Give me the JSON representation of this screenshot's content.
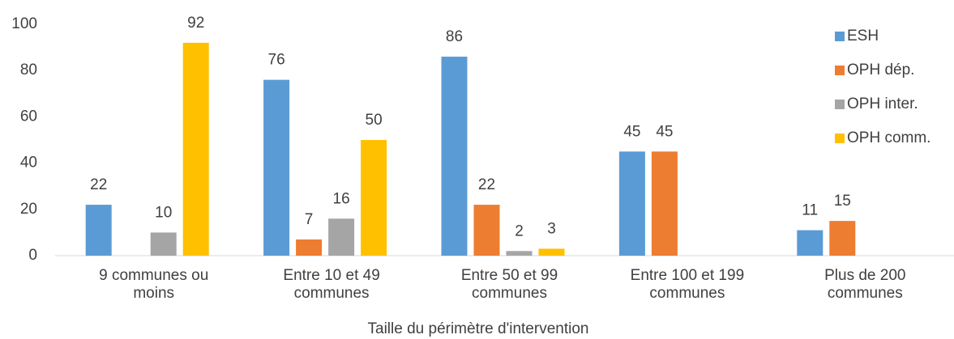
{
  "chart_data": {
    "type": "bar",
    "x_label": "Taille du périmètre d'intervention",
    "categories": [
      "9 communes ou moins",
      "Entre 10 et 49 communes",
      "Entre 50 et 99 communes",
      "Entre 100 et 199 communes",
      "Plus de 200 communes"
    ],
    "series": [
      {
        "name": "ESH",
        "color": "#5b9bd5",
        "values": [
          22,
          76,
          86,
          45,
          11
        ]
      },
      {
        "name": "OPH dép.",
        "color": "#ed7d31",
        "values": [
          null,
          7,
          22,
          45,
          15
        ]
      },
      {
        "name": "OPH inter.",
        "color": "#a5a5a5",
        "values": [
          10,
          16,
          2,
          null,
          null
        ]
      },
      {
        "name": "OPH comm.",
        "color": "#ffc000",
        "values": [
          92,
          50,
          3,
          null,
          null
        ]
      }
    ],
    "ylim": [
      0,
      100
    ],
    "yticks": [
      0,
      20,
      40,
      60,
      80,
      100
    ],
    "grid": false,
    "legend": "right"
  }
}
